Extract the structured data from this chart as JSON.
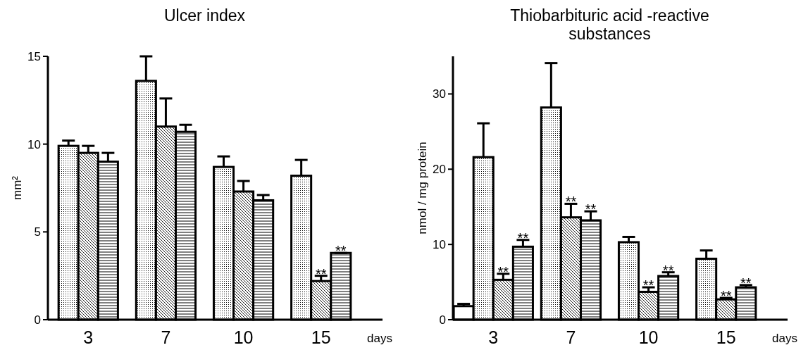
{
  "chart_data": [
    {
      "type": "bar",
      "title": "Ulcer index",
      "ylabel": "mm²",
      "xlabel": "days",
      "categories": [
        "3",
        "7",
        "10",
        "15"
      ],
      "ylim": [
        0,
        15
      ],
      "yticks": [
        0,
        5,
        10,
        15
      ],
      "series": [
        {
          "color": "#000000",
          "values": [
            9.9,
            13.6,
            8.7,
            8.2
          ],
          "errors": [
            [
              9.9,
              10.2
            ],
            [
              13.6,
              15.0
            ],
            [
              8.7,
              9.3
            ],
            [
              8.2,
              9.1
            ]
          ]
        },
        {
          "color": "#000000",
          "values": [
            9.5,
            11.0,
            7.3,
            2.2
          ],
          "errors": [
            [
              9.5,
              9.9
            ],
            [
              11.0,
              12.6
            ],
            [
              7.3,
              7.9
            ],
            [
              2.2,
              2.5
            ]
          ],
          "value_labels": [
            null,
            null,
            null,
            "**"
          ]
        },
        {
          "color": "#000000",
          "values": [
            9.0,
            10.7,
            6.8,
            3.8
          ],
          "errors": [
            [
              9.0,
              9.5
            ],
            [
              10.7,
              11.1
            ],
            [
              6.8,
              7.1
            ],
            [
              3.8,
              3.8
            ]
          ],
          "value_labels": [
            null,
            null,
            null,
            "**"
          ]
        }
      ]
    },
    {
      "type": "bar",
      "title": "Thiobarbituric acid -reactive substances",
      "ylabel": "nmol / mg protein",
      "xlabel": "days",
      "categories": [
        "3",
        "7",
        "10",
        "15"
      ],
      "ylim": [
        0,
        35
      ],
      "yticks": [
        0,
        10,
        20,
        30
      ],
      "series": [
        {
          "color": "#000000",
          "values": [
            1.8,
            null,
            null,
            null
          ],
          "errors": [
            [
              1.8,
              2.1
            ],
            null,
            null,
            null
          ]
        },
        {
          "color": "#000000",
          "values": [
            21.6,
            28.2,
            10.3,
            8.1
          ],
          "errors": [
            [
              21.6,
              26.1
            ],
            [
              28.2,
              34.1
            ],
            [
              10.3,
              11.0
            ],
            [
              8.1,
              9.2
            ]
          ]
        },
        {
          "color": "#000000",
          "values": [
            5.3,
            13.6,
            3.7,
            2.7
          ],
          "errors": [
            [
              5.3,
              6.1
            ],
            [
              13.6,
              15.4
            ],
            [
              3.7,
              4.3
            ],
            [
              2.7,
              2.9
            ]
          ],
          "value_labels": [
            "**",
            "**",
            "**",
            "**"
          ]
        },
        {
          "color": "#000000",
          "values": [
            9.7,
            13.2,
            5.8,
            4.3
          ],
          "errors": [
            [
              9.7,
              10.6
            ],
            [
              13.2,
              14.4
            ],
            [
              5.8,
              6.3
            ],
            [
              4.3,
              4.6
            ]
          ],
          "value_labels": [
            "**",
            "**",
            "**",
            "**"
          ]
        }
      ]
    }
  ]
}
